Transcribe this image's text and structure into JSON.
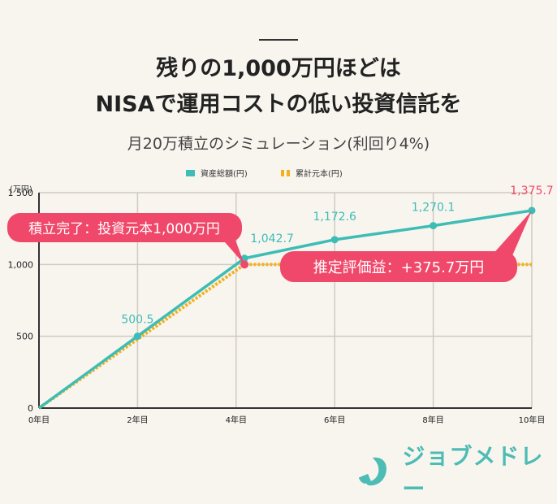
{
  "header": {
    "title_line1": "残りの1,000万円ほどは",
    "title_line2": "NISAで運用コストの低い投資信託を",
    "subtitle": "月20万積立のシミュレーション(利回り4%)"
  },
  "legend": {
    "series1": "資産総額(円)",
    "series2": "累計元本(円)"
  },
  "callouts": {
    "left": "積立完了：投資元本1,000万円",
    "right": "推定評価益：+375.7万円"
  },
  "logo": {
    "text": "ジョブメドレー",
    "icon": "jobmedley-logo-icon"
  },
  "colors": {
    "background": "#f8f5ef",
    "teal": "#3dbdb5",
    "gold": "#f2b01e",
    "pink": "#f0486a",
    "grid": "#cfcac2",
    "axis": "#333333"
  },
  "chart_data": {
    "type": "line",
    "title": "月20万積立のシミュレーション(利回り4%)",
    "xlabel": "",
    "ylabel": "(万円)",
    "x_tick_labels": [
      "0年目",
      "2年目",
      "4年目",
      "6年目",
      "8年目",
      "10年目"
    ],
    "x_ticks": [
      0,
      2,
      4,
      6,
      8,
      10
    ],
    "y_tick_labels": [
      "0",
      "500",
      "1,000",
      "1 500"
    ],
    "y_ticks": [
      0,
      500,
      1000,
      1500
    ],
    "xlim": [
      0,
      10
    ],
    "ylim": [
      0,
      1500
    ],
    "grid": true,
    "legend_position": "top",
    "series": [
      {
        "name": "資産総額(円)",
        "color": "#3dbdb5",
        "style": "solid",
        "x": [
          0,
          2,
          4.17,
          6,
          8,
          10
        ],
        "values": [
          0,
          500.5,
          1042.7,
          1172.6,
          1270.1,
          1375.7
        ],
        "labels": [
          "",
          "500.5",
          "1,042.7",
          "1,172.6",
          "1,270.1",
          "1,375.7"
        ]
      },
      {
        "name": "累計元本(円)",
        "color": "#f2b01e",
        "style": "dotted",
        "x": [
          0,
          4.17,
          10
        ],
        "values": [
          0,
          1000,
          1000
        ]
      }
    ],
    "annotations": [
      {
        "text": "積立完了：投資元本1,000万円",
        "x": 4.17,
        "y": 1000
      },
      {
        "text": "推定評価益：+375.7万円",
        "x": 10,
        "y": 1375.7
      }
    ]
  }
}
